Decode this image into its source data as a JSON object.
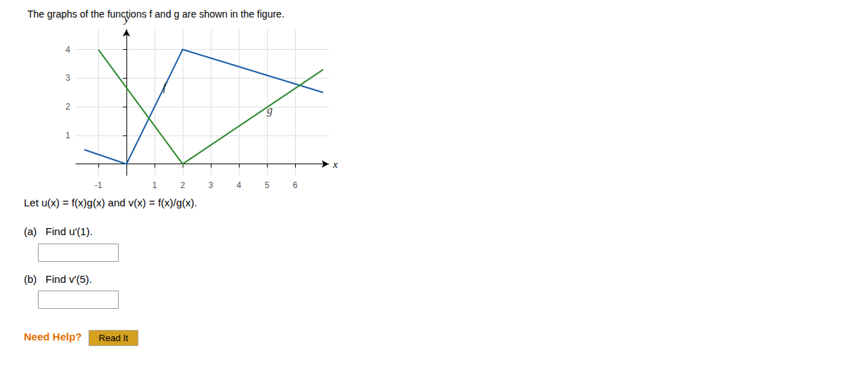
{
  "chart_data": {
    "type": "line",
    "title": "The graphs of the functions f and g are shown in the figure.",
    "series": [
      {
        "name": "f",
        "color": "#1a5fa8",
        "x": [
          -1.5,
          0,
          2,
          7
        ],
        "values": [
          0.5,
          0,
          4,
          2.5
        ]
      },
      {
        "name": "g",
        "color": "#2e8b2e",
        "x": [
          -1,
          2,
          7
        ],
        "values": [
          4,
          0,
          3.3
        ]
      }
    ],
    "xlim": [
      -1.8,
      7.2
    ],
    "ylim": [
      -0.4,
      4.7
    ],
    "xticks": [
      -1,
      1,
      2,
      3,
      4,
      5,
      6
    ],
    "yticks": [
      1,
      2,
      3,
      4
    ],
    "xlabel": "x",
    "ylabel": "y",
    "grid": true,
    "annotations": [
      {
        "text": "f",
        "x": 1.3,
        "y": 2.7
      },
      {
        "text": "g",
        "x": 5.0,
        "y": 1.9
      },
      {
        "text": "Let u(x) = f(x)g(x) and v(x) = f(x)/g(x)."
      },
      {
        "text": "(a)   Find u′(1)."
      },
      {
        "text": "(b)   Find v′(5)."
      },
      {
        "text": "Need Help?"
      },
      {
        "text": "Read It"
      }
    ]
  }
}
